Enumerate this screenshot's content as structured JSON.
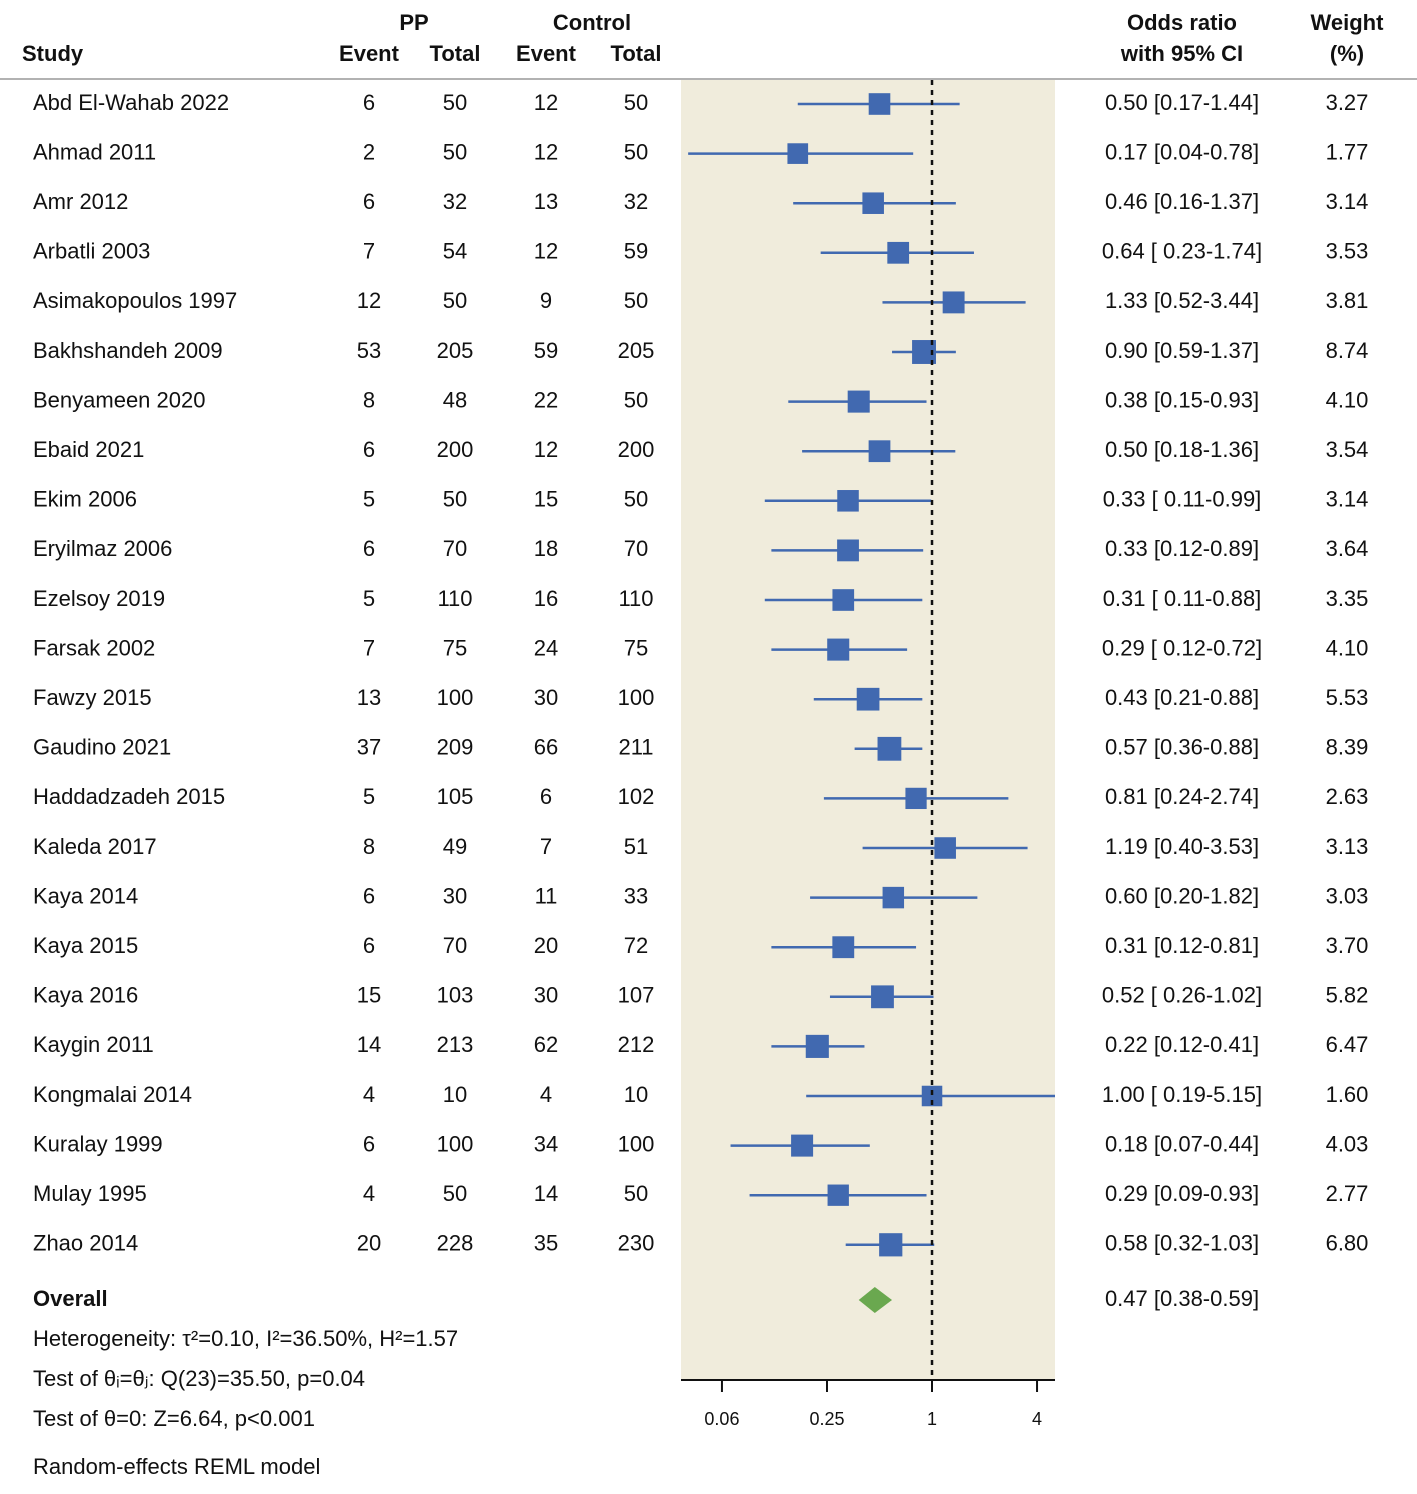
{
  "chart_data": {
    "type": "forest",
    "headers": {
      "study": "Study",
      "pp": "PP",
      "control": "Control",
      "event": "Event",
      "total": "Total",
      "or_line1": "Odds ratio",
      "or_line2": "with 95% CI",
      "weight_line1": "Weight",
      "weight_line2": "(%)"
    },
    "studies": [
      "Abd El-Wahab 2022",
      "Ahmad 2011",
      "Amr 2012",
      "Arbatli 2003",
      "Asimakopoulos 1997",
      "Bakhshandeh 2009",
      "Benyameen 2020",
      "Ebaid 2021",
      "Ekim 2006",
      "Eryilmaz 2006",
      "Ezelsoy 2019",
      "Farsak 2002",
      "Fawzy 2015",
      "Gaudino 2021",
      "Haddadzadeh 2015",
      "Kaleda 2017",
      "Kaya 2014",
      "Kaya 2015",
      "Kaya 2016",
      "Kaygin 2011",
      "Kongmalai 2014",
      "Kuralay 1999",
      "Mulay 1995",
      "Zhao 2014"
    ],
    "pp_event": [
      6,
      2,
      6,
      7,
      12,
      53,
      8,
      6,
      5,
      6,
      5,
      7,
      13,
      37,
      5,
      8,
      6,
      6,
      15,
      14,
      4,
      6,
      4,
      20
    ],
    "pp_total": [
      50,
      50,
      32,
      54,
      50,
      205,
      48,
      200,
      50,
      70,
      110,
      75,
      100,
      209,
      105,
      49,
      30,
      70,
      103,
      213,
      10,
      100,
      50,
      228
    ],
    "control_event": [
      12,
      12,
      13,
      12,
      9,
      59,
      22,
      12,
      15,
      18,
      16,
      24,
      30,
      66,
      6,
      7,
      11,
      20,
      30,
      62,
      4,
      34,
      14,
      35
    ],
    "control_total": [
      50,
      50,
      32,
      59,
      50,
      205,
      50,
      200,
      50,
      70,
      110,
      75,
      100,
      211,
      102,
      51,
      33,
      72,
      107,
      212,
      10,
      100,
      50,
      230
    ],
    "values": [
      0.5,
      0.17,
      0.46,
      0.64,
      1.33,
      0.9,
      0.38,
      0.5,
      0.33,
      0.33,
      0.31,
      0.29,
      0.43,
      0.57,
      0.81,
      1.19,
      0.6,
      0.31,
      0.52,
      0.22,
      1.0,
      0.18,
      0.29,
      0.58
    ],
    "ci_lower": [
      0.17,
      0.04,
      0.16,
      0.23,
      0.52,
      0.59,
      0.15,
      0.18,
      0.11,
      0.12,
      0.11,
      0.12,
      0.21,
      0.36,
      0.24,
      0.4,
      0.2,
      0.12,
      0.26,
      0.12,
      0.19,
      0.07,
      0.09,
      0.32
    ],
    "ci_upper": [
      1.44,
      0.78,
      1.37,
      1.74,
      3.44,
      1.37,
      0.93,
      1.36,
      0.99,
      0.89,
      0.88,
      0.72,
      0.88,
      0.88,
      2.74,
      3.53,
      1.82,
      0.81,
      1.02,
      0.41,
      5.15,
      0.44,
      0.93,
      1.03
    ],
    "value_labels": [
      "0.50 [0.17-1.44]",
      "0.17 [0.04-0.78]",
      "0.46 [0.16-1.37]",
      "0.64 [ 0.23-1.74]",
      "1.33 [0.52-3.44]",
      "0.90 [0.59-1.37]",
      "0.38 [0.15-0.93]",
      "0.50 [0.18-1.36]",
      "0.33 [ 0.11-0.99]",
      "0.33 [0.12-0.89]",
      "0.31 [ 0.11-0.88]",
      "0.29 [ 0.12-0.72]",
      "0.43 [0.21-0.88]",
      "0.57 [0.36-0.88]",
      "0.81 [0.24-2.74]",
      "1.19 [0.40-3.53]",
      "0.60 [0.20-1.82]",
      "0.31 [0.12-0.81]",
      "0.52 [ 0.26-1.02]",
      "0.22 [0.12-0.41]",
      "1.00 [ 0.19-5.15]",
      "0.18 [0.07-0.44]",
      "0.29 [0.09-0.93]",
      "0.58 [0.32-1.03]"
    ],
    "weights": [
      3.27,
      1.77,
      3.14,
      3.53,
      3.81,
      8.74,
      4.1,
      3.54,
      3.14,
      3.64,
      3.35,
      4.1,
      5.53,
      8.39,
      2.63,
      3.13,
      3.03,
      3.7,
      5.82,
      6.47,
      1.6,
      4.03,
      2.77,
      6.8
    ],
    "weight_labels": [
      "3.27",
      "1.77",
      "3.14",
      "3.53",
      "3.81",
      "8.74",
      "4.10",
      "3.54",
      "3.14",
      "3.64",
      "3.35",
      "4.10",
      "5.53",
      "8.39",
      "2.63",
      "3.13",
      "3.03",
      "3.70",
      "5.82",
      "6.47",
      "1.60",
      "4.03",
      "2.77",
      "6.80"
    ],
    "color": "#4169b0",
    "overall": {
      "label": "Overall",
      "value": 0.47,
      "ci_lower": 0.38,
      "ci_upper": 0.59,
      "value_label": "0.47 [0.38-0.59]",
      "color": "#6aa84f"
    },
    "notes": [
      "Heterogeneity: τ²=0.10, I²=36.50%, H²=1.57",
      "Test of θᵢ=θⱼ: Q(23)=35.50, p=0.04",
      "Test of θ=0: Z=6.64, p<0.001",
      "Random-effects REML model"
    ],
    "log_scale": true,
    "reference_line": 1,
    "xlim": [
      0.0364,
      5.07
    ],
    "xticks": [
      {
        "value": 0.0625,
        "label": "0.06"
      },
      0.25,
      1,
      4
    ],
    "plot_background": "#f0ecdc"
  }
}
